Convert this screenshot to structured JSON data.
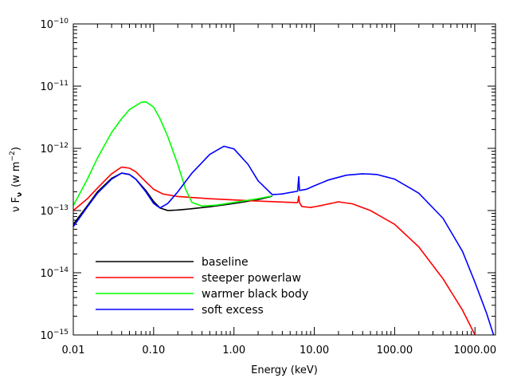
{
  "chart_data": {
    "type": "line",
    "title": "",
    "xlabel": "Energy (keV)",
    "ylabel_main": "ν F",
    "ylabel_sub": "ν",
    "ylabel_unit_open": "(w m",
    "ylabel_unit_exp": "−2",
    "ylabel_unit_close": ")",
    "xscale": "log",
    "yscale": "log",
    "xlim": [
      0.01,
      1800
    ],
    "ylim": [
      1e-15,
      1e-10
    ],
    "x_ticks": [
      {
        "value": 0.01,
        "label": "0.01"
      },
      {
        "value": 0.1,
        "label": "0.10"
      },
      {
        "value": 1,
        "label": "1.00"
      },
      {
        "value": 10,
        "label": "10.00"
      },
      {
        "value": 100,
        "label": "100.00"
      },
      {
        "value": 1000,
        "label": "1000.00"
      }
    ],
    "y_ticks": [
      {
        "value": 1e-15,
        "base": "10",
        "exp": "−15"
      },
      {
        "value": 1e-14,
        "base": "10",
        "exp": "−14"
      },
      {
        "value": 1e-13,
        "base": "10",
        "exp": "−13"
      },
      {
        "value": 1e-12,
        "base": "10",
        "exp": "−12"
      },
      {
        "value": 1e-11,
        "base": "10",
        "exp": "−11"
      },
      {
        "value": 1e-10,
        "base": "10",
        "exp": "−10"
      }
    ],
    "legend_position": "bottom-left",
    "series": [
      {
        "name": "baseline",
        "color": "#000000",
        "points": [
          [
            0.01,
            6e-14
          ],
          [
            0.015,
            1.2e-13
          ],
          [
            0.02,
            2e-13
          ],
          [
            0.03,
            3.3e-13
          ],
          [
            0.04,
            4e-13
          ],
          [
            0.05,
            3.8e-13
          ],
          [
            0.06,
            3.2e-13
          ],
          [
            0.08,
            2.1e-13
          ],
          [
            0.1,
            1.4e-13
          ],
          [
            0.12,
            1.1e-13
          ],
          [
            0.15,
            1e-13
          ],
          [
            0.2,
            1.02e-13
          ],
          [
            0.3,
            1.07e-13
          ],
          [
            0.5,
            1.15e-13
          ],
          [
            1,
            1.3e-13
          ],
          [
            2,
            1.5e-13
          ],
          [
            3,
            1.7e-13
          ]
        ]
      },
      {
        "name": "steeper powerlaw",
        "color": "#ff0000",
        "points": [
          [
            0.01,
            1e-13
          ],
          [
            0.015,
            1.55e-13
          ],
          [
            0.02,
            2.3e-13
          ],
          [
            0.03,
            3.9e-13
          ],
          [
            0.04,
            5e-13
          ],
          [
            0.05,
            4.8e-13
          ],
          [
            0.06,
            4.2e-13
          ],
          [
            0.08,
            2.9e-13
          ],
          [
            0.1,
            2.2e-13
          ],
          [
            0.13,
            1.85e-13
          ],
          [
            0.2,
            1.68e-13
          ],
          [
            0.5,
            1.55e-13
          ],
          [
            1,
            1.48e-13
          ],
          [
            2,
            1.42e-13
          ],
          [
            4,
            1.37e-13
          ],
          [
            6.2,
            1.34e-13
          ],
          [
            6.4,
            1.7e-13
          ],
          [
            6.55,
            1.34e-13
          ],
          [
            7,
            1.16e-13
          ],
          [
            9,
            1.12e-13
          ],
          [
            12,
            1.2e-13
          ],
          [
            20,
            1.38e-13
          ],
          [
            30,
            1.28e-13
          ],
          [
            50,
            1e-13
          ],
          [
            100,
            6e-14
          ],
          [
            200,
            2.6e-14
          ],
          [
            400,
            8e-15
          ],
          [
            700,
            2.5e-15
          ],
          [
            1000,
            1e-15
          ]
        ]
      },
      {
        "name": "warmer black body",
        "color": "#00ff00",
        "points": [
          [
            0.01,
            1.2e-13
          ],
          [
            0.015,
            3.2e-13
          ],
          [
            0.02,
            7e-13
          ],
          [
            0.03,
            1.8e-12
          ],
          [
            0.04,
            3e-12
          ],
          [
            0.05,
            4.2e-12
          ],
          [
            0.07,
            5.5e-12
          ],
          [
            0.08,
            5.6e-12
          ],
          [
            0.1,
            4.6e-12
          ],
          [
            0.12,
            3e-12
          ],
          [
            0.15,
            1.55e-12
          ],
          [
            0.2,
            5.5e-13
          ],
          [
            0.25,
            2.2e-13
          ],
          [
            0.3,
            1.35e-13
          ],
          [
            0.4,
            1.18e-13
          ],
          [
            0.6,
            1.22e-13
          ],
          [
            1,
            1.35e-13
          ],
          [
            2,
            1.55e-13
          ],
          [
            3,
            1.72e-13
          ]
        ]
      },
      {
        "name": "soft excess",
        "color": "#0000ff",
        "points": [
          [
            0.01,
            5.5e-14
          ],
          [
            0.015,
            1.15e-13
          ],
          [
            0.02,
            1.9e-13
          ],
          [
            0.03,
            3.2e-13
          ],
          [
            0.04,
            4e-13
          ],
          [
            0.05,
            3.8e-13
          ],
          [
            0.06,
            3.2e-13
          ],
          [
            0.08,
            2e-13
          ],
          [
            0.1,
            1.3e-13
          ],
          [
            0.12,
            1.1e-13
          ],
          [
            0.15,
            1.3e-13
          ],
          [
            0.2,
            2e-13
          ],
          [
            0.3,
            4e-13
          ],
          [
            0.5,
            8e-13
          ],
          [
            0.75,
            1.08e-12
          ],
          [
            1,
            9.8e-13
          ],
          [
            1.5,
            5.5e-13
          ],
          [
            2,
            3e-13
          ],
          [
            3,
            1.8e-13
          ],
          [
            4,
            1.85e-13
          ],
          [
            5,
            1.95e-13
          ],
          [
            6.2,
            2.05e-13
          ],
          [
            6.4,
            3.5e-13
          ],
          [
            6.55,
            2.1e-13
          ],
          [
            8,
            2.2e-13
          ],
          [
            10,
            2.5e-13
          ],
          [
            15,
            3.1e-13
          ],
          [
            25,
            3.7e-13
          ],
          [
            40,
            3.9e-13
          ],
          [
            60,
            3.8e-13
          ],
          [
            100,
            3.2e-13
          ],
          [
            200,
            1.9e-13
          ],
          [
            400,
            7.5e-14
          ],
          [
            700,
            2.2e-14
          ],
          [
            1000,
            7e-15
          ],
          [
            1400,
            2.2e-15
          ],
          [
            1800,
            8e-16
          ]
        ]
      }
    ]
  }
}
